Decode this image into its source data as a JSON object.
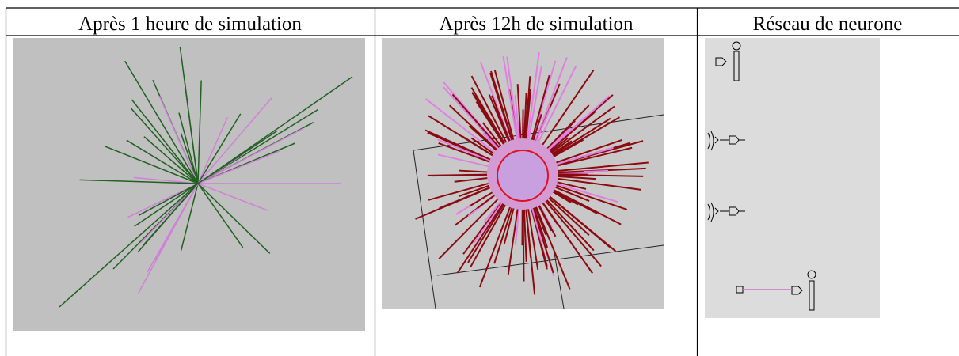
{
  "table": {
    "header": [
      "Après 1 heure de simulation",
      "Après 12h de simulation",
      "Réseau de neurone"
    ]
  }
}
